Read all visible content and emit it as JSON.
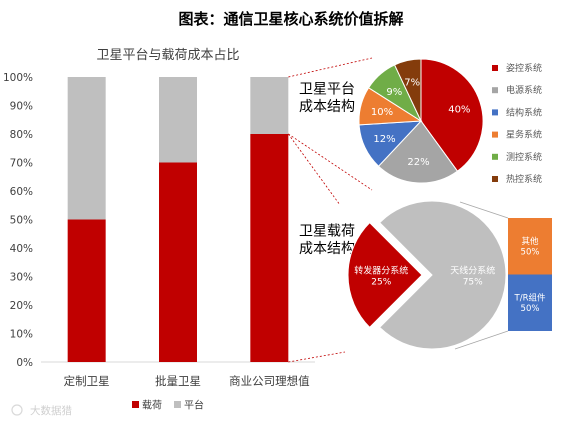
{
  "header": {
    "title": "图表：通信卫星核心系统价值拆解"
  },
  "watermark": "大数据猎",
  "colors": {
    "payload_red": "#c00000",
    "platform_gray": "#bfbfbf",
    "blue": "#4472c4",
    "gray": "#a5a5a5",
    "orange": "#ed7d31",
    "green": "#70ad47",
    "brown": "#843c0c",
    "axis": "#595959"
  },
  "chart_data": [
    {
      "type": "bar",
      "stacked": true,
      "title": "卫星平台与载荷成本占比",
      "categories": [
        "定制卫星",
        "批量卫星",
        "商业公司理想值"
      ],
      "series": [
        {
          "name": "载荷",
          "values": [
            50,
            70,
            80
          ],
          "color": "#c00000"
        },
        {
          "name": "平台",
          "values": [
            50,
            30,
            20
          ],
          "color": "#bfbfbf"
        }
      ],
      "yticks": [
        "0%",
        "10%",
        "20%",
        "30%",
        "40%",
        "50%",
        "60%",
        "70%",
        "80%",
        "90%",
        "100%"
      ],
      "ylim": [
        0,
        100
      ],
      "grid": false,
      "legend_position": "bottom-left"
    },
    {
      "type": "pie",
      "title": "卫星平台成本结构",
      "slices": [
        {
          "name": "姿控系统",
          "value": 40,
          "label": "40%",
          "color": "#c00000"
        },
        {
          "name": "电源系统",
          "value": 22,
          "label": "22%",
          "color": "#a5a5a5"
        },
        {
          "name": "结构系统",
          "value": 12,
          "label": "12%",
          "color": "#4472c4"
        },
        {
          "name": "星务系统",
          "value": 10,
          "label": "10%",
          "color": "#ed7d31"
        },
        {
          "name": "测控系统",
          "value": 9,
          "label": "9%",
          "color": "#70ad47"
        },
        {
          "name": "热控系统",
          "value": 7,
          "label": "7%",
          "color": "#843c0c"
        }
      ],
      "legend_position": "right"
    },
    {
      "type": "pie",
      "title": "卫星载荷成本结构",
      "slices": [
        {
          "name": "转发器分系统",
          "value": 25,
          "label": "转发器分系统\n25%",
          "color": "#c00000"
        },
        {
          "name": "天线分系统",
          "value": 75,
          "label": "天线分系统\n75%",
          "color": "#bfbfbf"
        }
      ]
    },
    {
      "type": "bar",
      "stacked": true,
      "categories": [
        "转发器分系统"
      ],
      "series": [
        {
          "name": "T/R组件",
          "values": [
            50
          ],
          "color": "#4472c4"
        },
        {
          "name": "其他",
          "values": [
            50
          ],
          "color": "#ed7d31"
        }
      ],
      "segment_labels": [
        "T/R组件\n50%",
        "其他\n50%"
      ],
      "ylim": [
        0,
        100
      ]
    }
  ]
}
